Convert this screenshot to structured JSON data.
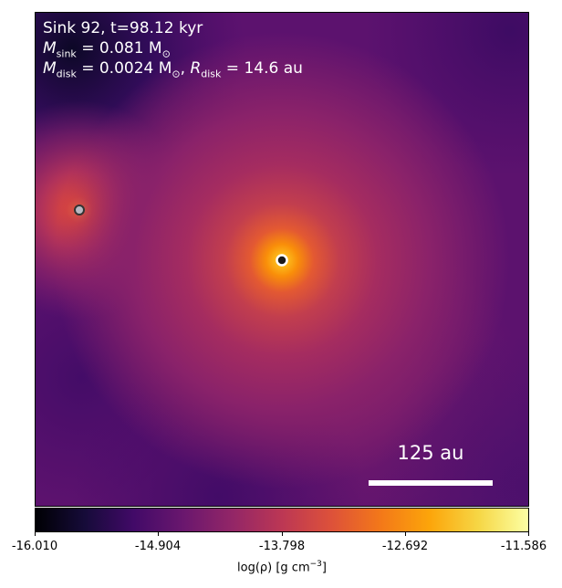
{
  "annotation": {
    "line1": "Sink 92, t=98.12 kyr",
    "m_sink_symbol": "M",
    "m_sink_sub": "sink",
    "m_sink_value": " = 0.081 M",
    "m_sink_unit_sub": "⊙",
    "m_disk_symbol": "M",
    "m_disk_sub": "disk",
    "m_disk_value": " = 0.0024 M",
    "m_disk_unit_sub": "⊙",
    "sep": ", ",
    "r_disk_symbol": "R",
    "r_disk_sub": "disk",
    "r_disk_value": " = 14.6 au"
  },
  "scale_bar": {
    "label": "125 au"
  },
  "colorbar": {
    "ticks": [
      "-16.010",
      "-14.904",
      "-13.798",
      "-12.692",
      "-11.586"
    ],
    "label": "log(ρ) [g cm",
    "label_exp": "−3",
    "label_end": "]",
    "colormap": "inferno"
  },
  "sinks": [
    {
      "name": "primary-sink",
      "fill": "#1a1a1a"
    },
    {
      "name": "secondary-sink",
      "fill": "#b9b9c2"
    }
  ]
}
